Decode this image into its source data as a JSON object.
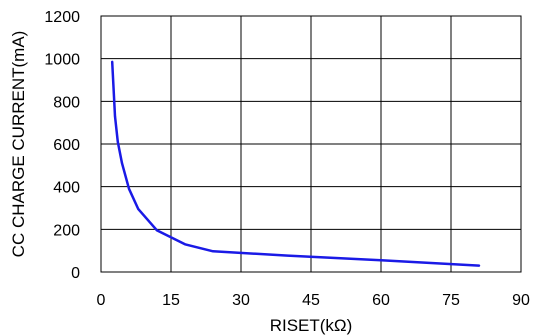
{
  "chart_data": {
    "type": "line",
    "title": "",
    "xlabel": "RISET(kΩ)",
    "ylabel": "CC CHARGE CURRENT(mA)",
    "xlim": [
      0,
      90
    ],
    "ylim": [
      0,
      1200
    ],
    "xticks": [
      0,
      15,
      30,
      45,
      60,
      75,
      90
    ],
    "yticks": [
      0,
      200,
      400,
      600,
      800,
      1000,
      1200
    ],
    "grid": true,
    "series": [
      {
        "color": "#1a1ae6",
        "x": [
          2.4,
          3.0,
          3.6,
          4.5,
          6.0,
          8.0,
          12.0,
          18.0,
          24.0,
          40.0,
          60.0,
          81.0
        ],
        "y": [
          985,
          730,
          610,
          510,
          390,
          295,
          195,
          130,
          97,
          77,
          55,
          30
        ]
      }
    ]
  }
}
